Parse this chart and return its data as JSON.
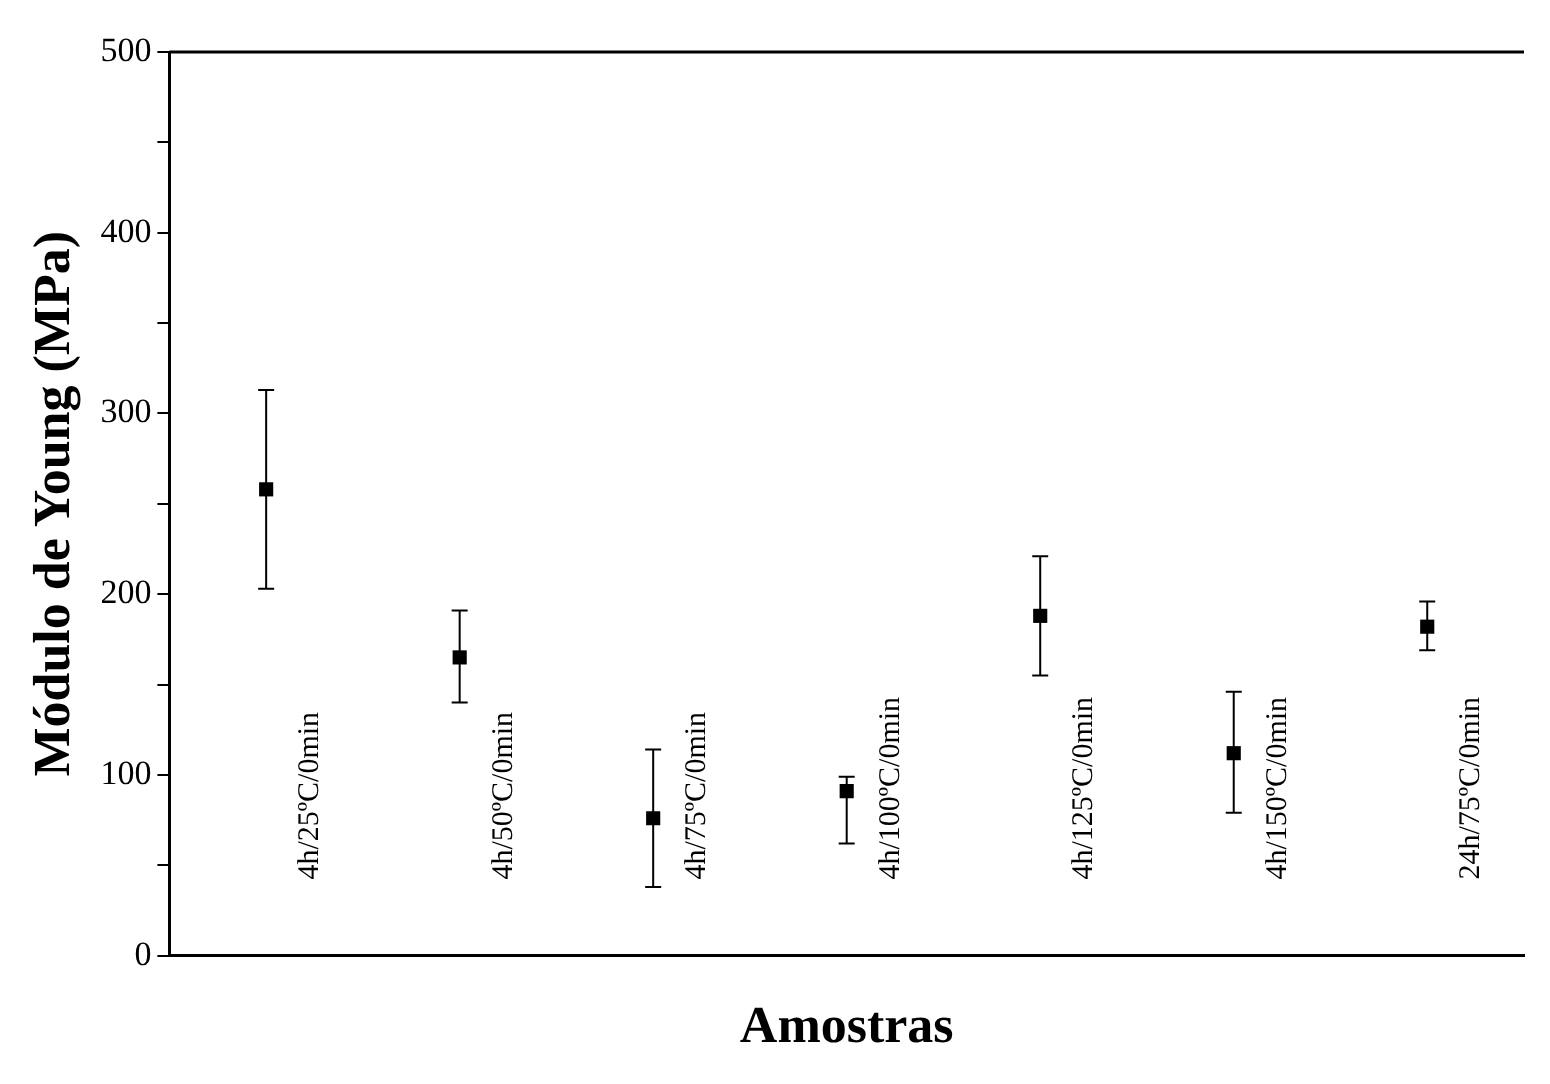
{
  "chart_data": {
    "type": "scatter",
    "ylabel": "Módulo de Young (MPa)",
    "xlabel": "Amostras",
    "categories": [
      "4h/25ºC/0min",
      "4h/50ºC/0min",
      "4h/75ºC/0min",
      "4h/100ºC/0min",
      "4h/125ºC/0min",
      "4h/150ºC/0min",
      "24h/75ºC/0min"
    ],
    "values": [
      258,
      165,
      76,
      91,
      188,
      112,
      182
    ],
    "errors": [
      [
        203,
        313
      ],
      [
        140,
        191
      ],
      [
        38,
        114
      ],
      [
        62,
        99
      ],
      [
        155,
        221
      ],
      [
        79,
        146
      ],
      [
        169,
        196
      ]
    ],
    "color": "#000000",
    "marker": "square",
    "ylim": [
      0,
      500
    ],
    "yticks": [
      0,
      {
        "value": 50,
        "label": null
      },
      100,
      {
        "value": 150,
        "label": null
      },
      200,
      {
        "value": 250,
        "label": null
      },
      300,
      {
        "value": 350,
        "label": null
      },
      400,
      {
        "value": 450,
        "label": null
      },
      500
    ],
    "grid": false,
    "legend": false
  }
}
